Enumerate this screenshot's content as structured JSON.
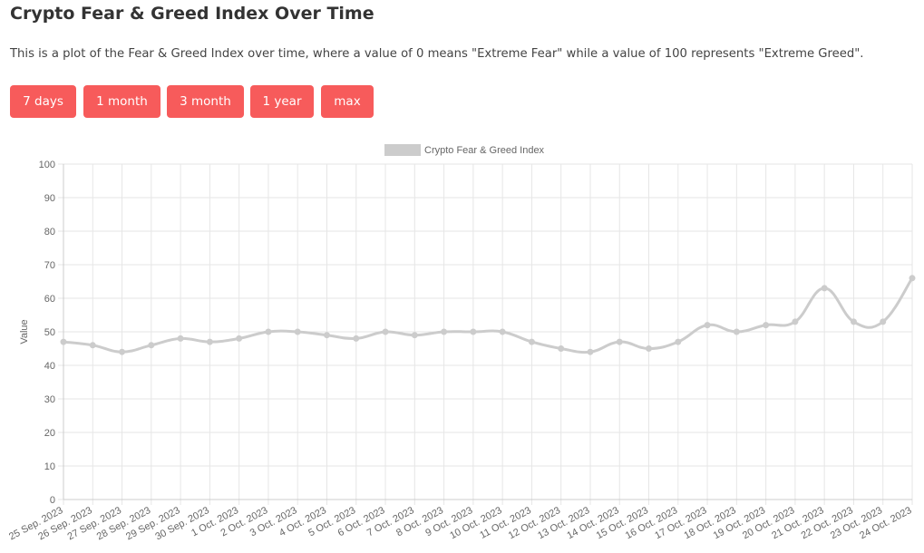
{
  "header": {
    "title": "Crypto Fear & Greed Index Over Time",
    "description": "This is a plot of the Fear & Greed Index over time, where a value of 0 means \"Extreme Fear\" while a value of 100 represents \"Extreme Greed\"."
  },
  "range_buttons": [
    "7 days",
    "1 month",
    "3 month",
    "1 year",
    "max"
  ],
  "colors": {
    "button_bg": "#f75b5b",
    "button_text": "#ffffff",
    "series_line": "#cccccc",
    "grid": "#e6e6e6"
  },
  "chart_data": {
    "type": "line",
    "legend": {
      "label": "Crypto Fear & Greed Index",
      "position": "top"
    },
    "ylabel": "Value",
    "xlabel": "",
    "ylim": [
      0,
      100
    ],
    "yticks": [
      0,
      10,
      20,
      30,
      40,
      50,
      60,
      70,
      80,
      90,
      100
    ],
    "grid": true,
    "categories": [
      "25 Sep. 2023",
      "26 Sep. 2023",
      "27 Sep. 2023",
      "28 Sep. 2023",
      "29 Sep. 2023",
      "30 Sep. 2023",
      "1 Oct. 2023",
      "2 Oct. 2023",
      "3 Oct. 2023",
      "4 Oct. 2023",
      "5 Oct. 2023",
      "6 Oct. 2023",
      "7 Oct. 2023",
      "8 Oct. 2023",
      "9 Oct. 2023",
      "10 Oct. 2023",
      "11 Oct. 2023",
      "12 Oct. 2023",
      "13 Oct. 2023",
      "14 Oct. 2023",
      "15 Oct. 2023",
      "16 Oct. 2023",
      "17 Oct. 2023",
      "18 Oct. 2023",
      "19 Oct. 2023",
      "20 Oct. 2023",
      "21 Oct. 2023",
      "22 Oct. 2023",
      "23 Oct. 2023",
      "24 Oct. 2023"
    ],
    "values": [
      47,
      46,
      44,
      46,
      48,
      47,
      48,
      50,
      50,
      49,
      48,
      50,
      49,
      50,
      50,
      50,
      47,
      45,
      44,
      47,
      45,
      47,
      52,
      50,
      52,
      53,
      63,
      53,
      53,
      66
    ]
  }
}
